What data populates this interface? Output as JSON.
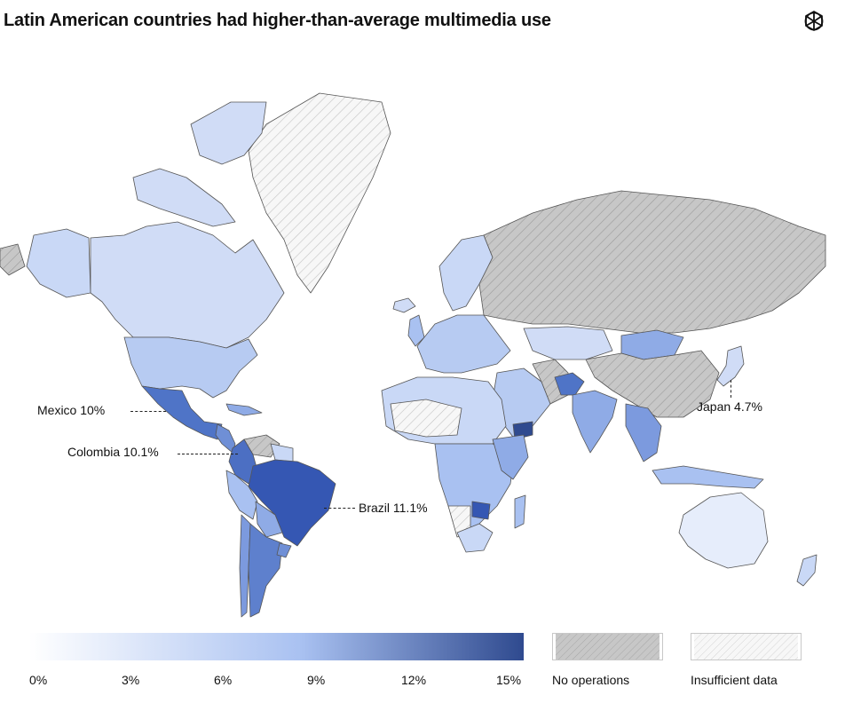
{
  "title": "Latin American countries had higher-than-average multimedia use",
  "logo_icon": "openai-logo-icon",
  "colors": {
    "scale_min": "#ffffff",
    "scale_mid": "#a9c1f1",
    "scale_max": "#2f4a8f",
    "no_operations": "#c7c7c7",
    "insufficient_data": "#f4f4f4",
    "border": "#555555"
  },
  "annotations": [
    {
      "country": "Mexico",
      "label": "Mexico 10%",
      "value": 10
    },
    {
      "country": "Colombia",
      "label": "Colombia 10.1%",
      "value": 10.1
    },
    {
      "country": "Brazil",
      "label": "Brazil 11.1%",
      "value": 11.1
    },
    {
      "country": "Japan",
      "label": "Japan 4.7%",
      "value": 4.7
    }
  ],
  "legend": {
    "scale_ticks": [
      "0%",
      "3%",
      "6%",
      "9%",
      "12%",
      "15%"
    ],
    "scale_range": [
      0,
      15
    ],
    "no_operations_label": "No operations",
    "insufficient_data_label": "Insufficient data"
  }
}
